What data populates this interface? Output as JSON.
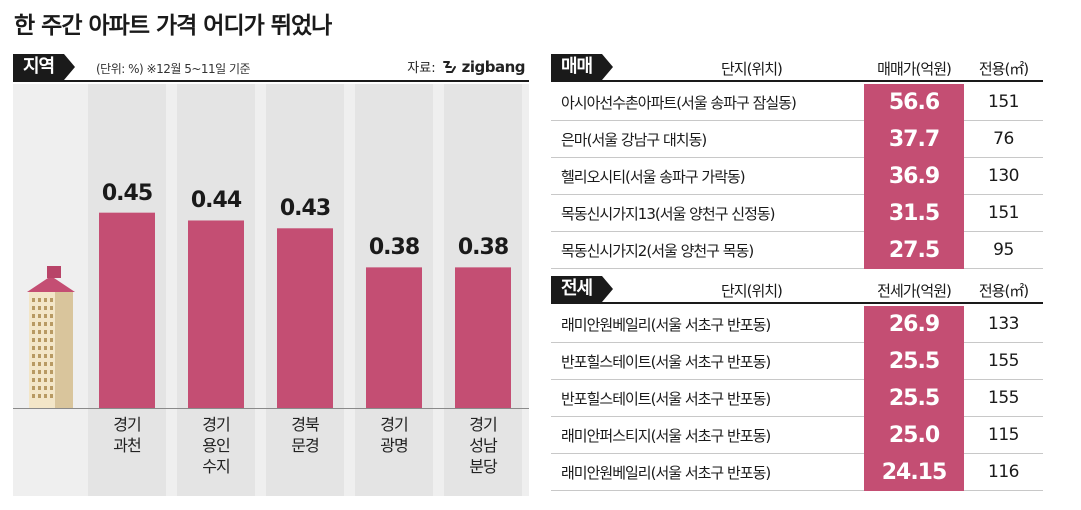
{
  "title": "한 주간 아파트 가격 어디가 뛰었나",
  "region_section": {
    "tag": "지역",
    "unit_note": "(단위: %)   ※12월 5~11일 기준",
    "source_label": "자료:",
    "source_brand": "zigbang"
  },
  "chart_data": {
    "type": "bar",
    "categories": [
      "경기 과천",
      "경기 용인 수지",
      "경북 문경",
      "경기 광명",
      "경기 성남 분당"
    ],
    "category_lines": [
      [
        "경기",
        "과천"
      ],
      [
        "경기",
        "용인",
        "수지"
      ],
      [
        "경북",
        "문경"
      ],
      [
        "경기",
        "광명"
      ],
      [
        "경기",
        "성남",
        "분당"
      ]
    ],
    "values": [
      0.45,
      0.44,
      0.43,
      0.38,
      0.38
    ],
    "value_labels": [
      "0.45",
      "0.44",
      "0.43",
      "0.38",
      "0.38"
    ],
    "ylabel": "(단위: %)",
    "bar_color": "#c44e73",
    "ylim": [
      0.2,
      0.5
    ]
  },
  "sale_section": {
    "tag": "매매",
    "col_complex": "단지(위치)",
    "col_price": "매매가(억원)",
    "col_area": "전용(㎡)",
    "rows": [
      {
        "name": "아시아선수촌아파트(서울 송파구 잠실동)",
        "price": "56.6",
        "area": "151"
      },
      {
        "name": "은마(서울 강남구 대치동)",
        "price": "37.7",
        "area": "76"
      },
      {
        "name": "헬리오시티(서울 송파구 가락동)",
        "price": "36.9",
        "area": "130"
      },
      {
        "name": "목동신시가지13(서울 양천구 신정동)",
        "price": "31.5",
        "area": "151"
      },
      {
        "name": "목동신시가지2(서울 양천구 목동)",
        "price": "27.5",
        "area": "95"
      }
    ]
  },
  "jeonse_section": {
    "tag": "전세",
    "col_complex": "단지(위치)",
    "col_price": "전세가(억원)",
    "col_area": "전용(㎡)",
    "rows": [
      {
        "name": "래미안원베일리(서울 서초구 반포동)",
        "price": "26.9",
        "area": "133"
      },
      {
        "name": "반포힐스테이트(서울 서초구 반포동)",
        "price": "25.5",
        "area": "155"
      },
      {
        "name": "반포힐스테이트(서울 서초구 반포동)",
        "price": "25.5",
        "area": "155"
      },
      {
        "name": "래미안퍼스티지(서울 서초구 반포동)",
        "price": "25.0",
        "area": "115"
      },
      {
        "name": "래미안원베일리(서울 서초구 반포동)",
        "price": "24.15",
        "area": "116"
      }
    ]
  },
  "colors": {
    "accent": "#c44e73",
    "dark": "#1a1a1a",
    "panel_bg": "#efefef"
  }
}
